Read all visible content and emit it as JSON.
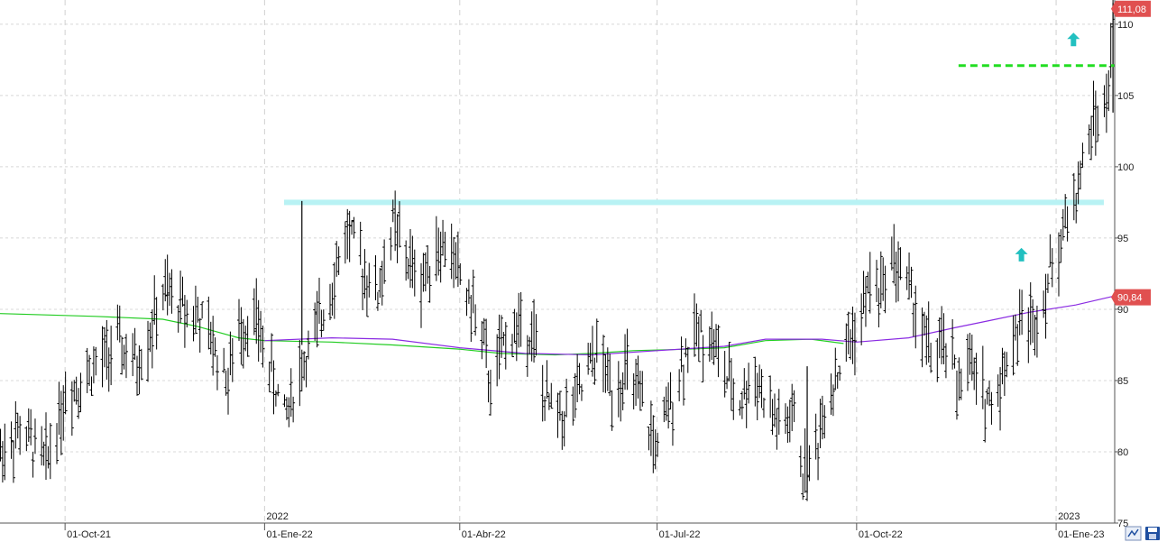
{
  "chart_data": {
    "type": "ohlc",
    "yaxis": {
      "ticks": [
        75,
        80,
        85,
        90,
        95,
        100,
        105,
        110
      ],
      "tick_labels": [
        "75",
        "80",
        "85",
        "90",
        "95",
        "100",
        "105",
        "110"
      ],
      "range": [
        75,
        111.7
      ],
      "position": "right"
    },
    "xaxis": {
      "range": [
        "2021-09-01",
        "2023-01-28"
      ],
      "date_labels": [
        {
          "date": "2021-10-01",
          "label": "01-Oct-21"
        },
        {
          "date": "2022-01-01",
          "label": "01-Ene-22"
        },
        {
          "date": "2022-04-01",
          "label": "01-Abr-22"
        },
        {
          "date": "2022-07-01",
          "label": "01-Jul-22"
        },
        {
          "date": "2022-10-01",
          "label": "01-Oct-22"
        },
        {
          "date": "2023-01-01",
          "label": "01-Ene-23"
        }
      ],
      "year_labels": [
        {
          "date": "2022-01-01",
          "label": "2022"
        },
        {
          "date": "2023-01-01",
          "label": "2023"
        }
      ]
    },
    "grid": true,
    "price_labels": [
      {
        "value": 111.08,
        "label": "111,08",
        "color": "#e05050"
      },
      {
        "value": 90.84,
        "label": "90,84",
        "color": "#e05050"
      }
    ],
    "support_band": {
      "value": 97.5,
      "from": "2022-01-10",
      "to": "2023-01-23",
      "color": "#b8f2f4"
    },
    "resistance_line": {
      "value": 107.1,
      "from": "2022-11-17",
      "to": "2023-01-28",
      "color": "#22dd22"
    },
    "arrows": [
      {
        "date": "2023-01-09",
        "value": 108.9,
        "color": "#22c0c0"
      },
      {
        "date": "2022-12-16",
        "value": 93.8,
        "color": "#22c0c0"
      }
    ],
    "moving_averages": [
      {
        "color": "#22cc22",
        "points": [
          [
            "2021-09-01",
            89.7
          ],
          [
            "2021-10-15",
            89.5
          ],
          [
            "2021-11-15",
            89.3
          ],
          [
            "2021-12-01",
            88.8
          ],
          [
            "2021-12-20",
            88.0
          ],
          [
            "2022-01-01",
            87.8
          ],
          [
            "2022-02-01",
            87.7
          ],
          [
            "2022-03-01",
            87.5
          ],
          [
            "2022-04-01",
            87.2
          ],
          [
            "2022-04-20",
            86.9
          ],
          [
            "2022-05-15",
            86.8
          ],
          [
            "2022-06-01",
            86.9
          ],
          [
            "2022-06-20",
            87.1
          ],
          [
            "2022-07-15",
            87.2
          ],
          [
            "2022-08-01",
            87.3
          ],
          [
            "2022-08-20",
            87.8
          ],
          [
            "2022-09-10",
            87.9
          ],
          [
            "2022-09-25",
            87.6
          ]
        ]
      },
      {
        "color": "#8a2be2",
        "points": [
          [
            "2022-01-01",
            87.8
          ],
          [
            "2022-02-01",
            88.0
          ],
          [
            "2022-03-01",
            87.9
          ],
          [
            "2022-04-01",
            87.3
          ],
          [
            "2022-05-01",
            86.9
          ],
          [
            "2022-06-01",
            86.8
          ],
          [
            "2022-07-01",
            87.1
          ],
          [
            "2022-08-01",
            87.4
          ],
          [
            "2022-08-20",
            87.9
          ],
          [
            "2022-09-15",
            87.9
          ],
          [
            "2022-10-01",
            87.7
          ],
          [
            "2022-10-25",
            88.0
          ],
          [
            "2022-11-15",
            88.7
          ],
          [
            "2022-12-01",
            89.2
          ],
          [
            "2022-12-20",
            89.8
          ],
          [
            "2023-01-10",
            90.3
          ],
          [
            "2023-01-27",
            90.9
          ]
        ]
      }
    ],
    "price_path": [
      [
        "2021-09-01",
        80.0
      ],
      [
        "2021-09-10",
        81.5
      ],
      [
        "2021-09-22",
        79.3
      ],
      [
        "2021-10-01",
        84.0
      ],
      [
        "2021-10-12",
        85.5
      ],
      [
        "2021-10-25",
        87.5
      ],
      [
        "2021-11-03",
        86.0
      ],
      [
        "2021-11-10",
        88.8
      ],
      [
        "2021-11-15",
        91.0
      ],
      [
        "2021-11-22",
        90.5
      ],
      [
        "2021-12-01",
        89.5
      ],
      [
        "2021-12-08",
        87.5
      ],
      [
        "2021-12-15",
        85.0
      ],
      [
        "2021-12-20",
        88.5
      ],
      [
        "2021-12-27",
        89.5
      ],
      [
        "2022-01-05",
        85.0
      ],
      [
        "2022-01-10",
        82.5
      ],
      [
        "2022-01-18",
        86.0
      ],
      [
        "2022-01-25",
        88.5
      ],
      [
        "2022-02-02",
        92.5
      ],
      [
        "2022-02-08",
        95.5
      ],
      [
        "2022-02-15",
        93.0
      ],
      [
        "2022-02-22",
        91.0
      ],
      [
        "2022-03-01",
        96.0
      ],
      [
        "2022-03-07",
        93.5
      ],
      [
        "2022-03-14",
        92.0
      ],
      [
        "2022-03-21",
        94.5
      ],
      [
        "2022-03-28",
        94.0
      ],
      [
        "2022-04-04",
        91.0
      ],
      [
        "2022-04-10",
        89.0
      ],
      [
        "2022-04-15",
        84.5
      ],
      [
        "2022-04-22",
        88.0
      ],
      [
        "2022-05-01",
        89.0
      ],
      [
        "2022-05-05",
        88.0
      ],
      [
        "2022-05-10",
        83.5
      ],
      [
        "2022-05-18",
        82.5
      ],
      [
        "2022-05-26",
        84.0
      ],
      [
        "2022-06-03",
        87.0
      ],
      [
        "2022-06-10",
        84.5
      ],
      [
        "2022-06-17",
        85.5
      ],
      [
        "2022-06-24",
        83.0
      ],
      [
        "2022-07-01",
        80.0
      ],
      [
        "2022-07-08",
        84.0
      ],
      [
        "2022-07-14",
        87.0
      ],
      [
        "2022-07-20",
        88.5
      ],
      [
        "2022-07-26",
        88.0
      ],
      [
        "2022-08-02",
        85.0
      ],
      [
        "2022-08-08",
        83.5
      ],
      [
        "2022-08-15",
        85.5
      ],
      [
        "2022-08-21",
        83.0
      ],
      [
        "2022-08-28",
        81.5
      ],
      [
        "2022-09-02",
        82.5
      ],
      [
        "2022-09-06",
        78.5
      ],
      [
        "2022-09-12",
        80.0
      ],
      [
        "2022-09-17",
        84.0
      ],
      [
        "2022-09-22",
        85.5
      ],
      [
        "2022-09-28",
        88.0
      ],
      [
        "2022-10-03",
        89.5
      ],
      [
        "2022-10-08",
        92.5
      ],
      [
        "2022-10-12",
        91.0
      ],
      [
        "2022-10-16",
        94.0
      ],
      [
        "2022-10-20",
        93.0
      ],
      [
        "2022-10-25",
        91.5
      ],
      [
        "2022-11-01",
        88.0
      ],
      [
        "2022-11-06",
        86.5
      ],
      [
        "2022-11-11",
        87.5
      ],
      [
        "2022-11-16",
        85.0
      ],
      [
        "2022-11-22",
        86.0
      ],
      [
        "2022-11-28",
        84.0
      ],
      [
        "2022-12-03",
        83.5
      ],
      [
        "2022-12-07",
        85.5
      ],
      [
        "2022-12-12",
        88.0
      ],
      [
        "2022-12-17",
        89.5
      ],
      [
        "2022-12-21",
        89.0
      ],
      [
        "2022-12-25",
        90.5
      ],
      [
        "2022-12-31",
        93.5
      ],
      [
        "2023-01-05",
        96.0
      ],
      [
        "2023-01-09",
        97.5
      ],
      [
        "2023-01-13",
        100.0
      ],
      [
        "2023-01-17",
        102.5
      ],
      [
        "2023-01-21",
        104.5
      ],
      [
        "2023-01-23",
        103.5
      ],
      [
        "2023-01-25",
        105.5
      ],
      [
        "2023-01-27",
        111.0
      ]
    ],
    "extra_bars": [
      {
        "date": "2022-01-18",
        "high": 97.6,
        "low": 87.5
      },
      {
        "date": "2022-09-08",
        "high": 86.0,
        "low": 77.1
      },
      {
        "date": "2023-01-27",
        "high": 111.5,
        "low": 103.8
      }
    ]
  },
  "toolbar": {
    "chart_icon_name": "line-chart-icon",
    "save_icon_name": "save-disk-icon",
    "accent_color": "#1f4fa0"
  }
}
